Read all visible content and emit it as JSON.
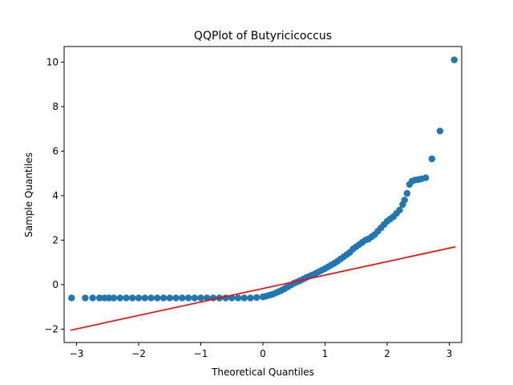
{
  "chart_data": {
    "type": "scatter",
    "title": "QQPlot of Butyricicoccus",
    "xlabel": "Theoretical Quantiles",
    "ylabel": "Sample Quantiles",
    "xlim": [
      -3.2,
      3.2
    ],
    "ylim": [
      -2.6,
      10.7
    ],
    "xticks": [
      -3,
      -2,
      -1,
      0,
      1,
      2,
      3
    ],
    "yticks": [
      -2,
      0,
      2,
      4,
      6,
      8,
      10
    ],
    "xtick_labels": [
      "−3",
      "−2",
      "−1",
      "0",
      "1",
      "2",
      "3"
    ],
    "ytick_labels": [
      "−2",
      "0",
      "2",
      "4",
      "6",
      "8",
      "10"
    ],
    "grid": false,
    "legend": "none",
    "colors": {
      "points": "#1f77b4",
      "line": "#ff0000"
    },
    "reference_line": {
      "x": [
        -3.1,
        3.1
      ],
      "y": [
        -2.05,
        1.7
      ]
    },
    "points": [
      [
        -3.08,
        -0.6
      ],
      [
        -2.86,
        -0.6
      ],
      [
        -2.74,
        -0.6
      ],
      [
        -2.63,
        -0.6
      ],
      [
        -2.55,
        -0.6
      ],
      [
        -2.48,
        -0.6
      ],
      [
        -2.4,
        -0.6
      ],
      [
        -2.3,
        -0.6
      ],
      [
        -2.2,
        -0.6
      ],
      [
        -2.1,
        -0.6
      ],
      [
        -2.0,
        -0.6
      ],
      [
        -1.9,
        -0.6
      ],
      [
        -1.8,
        -0.6
      ],
      [
        -1.7,
        -0.6
      ],
      [
        -1.6,
        -0.6
      ],
      [
        -1.5,
        -0.6
      ],
      [
        -1.4,
        -0.6
      ],
      [
        -1.3,
        -0.6
      ],
      [
        -1.2,
        -0.6
      ],
      [
        -1.1,
        -0.6
      ],
      [
        -1.0,
        -0.6
      ],
      [
        -0.9,
        -0.6
      ],
      [
        -0.8,
        -0.6
      ],
      [
        -0.7,
        -0.6
      ],
      [
        -0.6,
        -0.6
      ],
      [
        -0.5,
        -0.6
      ],
      [
        -0.4,
        -0.6
      ],
      [
        -0.3,
        -0.6
      ],
      [
        -0.2,
        -0.6
      ],
      [
        -0.1,
        -0.58
      ],
      [
        0.0,
        -0.55
      ],
      [
        0.05,
        -0.52
      ],
      [
        0.1,
        -0.48
      ],
      [
        0.15,
        -0.44
      ],
      [
        0.2,
        -0.38
      ],
      [
        0.25,
        -0.32
      ],
      [
        0.3,
        -0.26
      ],
      [
        0.35,
        -0.18
      ],
      [
        0.4,
        -0.1
      ],
      [
        0.45,
        -0.02
      ],
      [
        0.5,
        0.06
      ],
      [
        0.55,
        0.12
      ],
      [
        0.6,
        0.18
      ],
      [
        0.65,
        0.25
      ],
      [
        0.7,
        0.32
      ],
      [
        0.75,
        0.38
      ],
      [
        0.8,
        0.44
      ],
      [
        0.85,
        0.5
      ],
      [
        0.9,
        0.58
      ],
      [
        0.95,
        0.65
      ],
      [
        1.0,
        0.72
      ],
      [
        1.05,
        0.8
      ],
      [
        1.1,
        0.88
      ],
      [
        1.15,
        0.96
      ],
      [
        1.2,
        1.05
      ],
      [
        1.25,
        1.15
      ],
      [
        1.3,
        1.25
      ],
      [
        1.35,
        1.35
      ],
      [
        1.4,
        1.45
      ],
      [
        1.45,
        1.6
      ],
      [
        1.5,
        1.7
      ],
      [
        1.55,
        1.8
      ],
      [
        1.6,
        1.9
      ],
      [
        1.65,
        2.0
      ],
      [
        1.7,
        2.05
      ],
      [
        1.75,
        2.15
      ],
      [
        1.8,
        2.25
      ],
      [
        1.85,
        2.4
      ],
      [
        1.9,
        2.55
      ],
      [
        1.95,
        2.7
      ],
      [
        2.0,
        2.85
      ],
      [
        2.05,
        2.95
      ],
      [
        2.1,
        3.05
      ],
      [
        2.15,
        3.2
      ],
      [
        2.2,
        3.35
      ],
      [
        2.25,
        3.6
      ],
      [
        2.28,
        3.8
      ],
      [
        2.32,
        4.1
      ],
      [
        2.36,
        4.5
      ],
      [
        2.4,
        4.65
      ],
      [
        2.45,
        4.7
      ],
      [
        2.5,
        4.72
      ],
      [
        2.55,
        4.75
      ],
      [
        2.62,
        4.8
      ],
      [
        2.72,
        5.65
      ],
      [
        2.85,
        6.9
      ],
      [
        3.08,
        10.1
      ]
    ]
  }
}
